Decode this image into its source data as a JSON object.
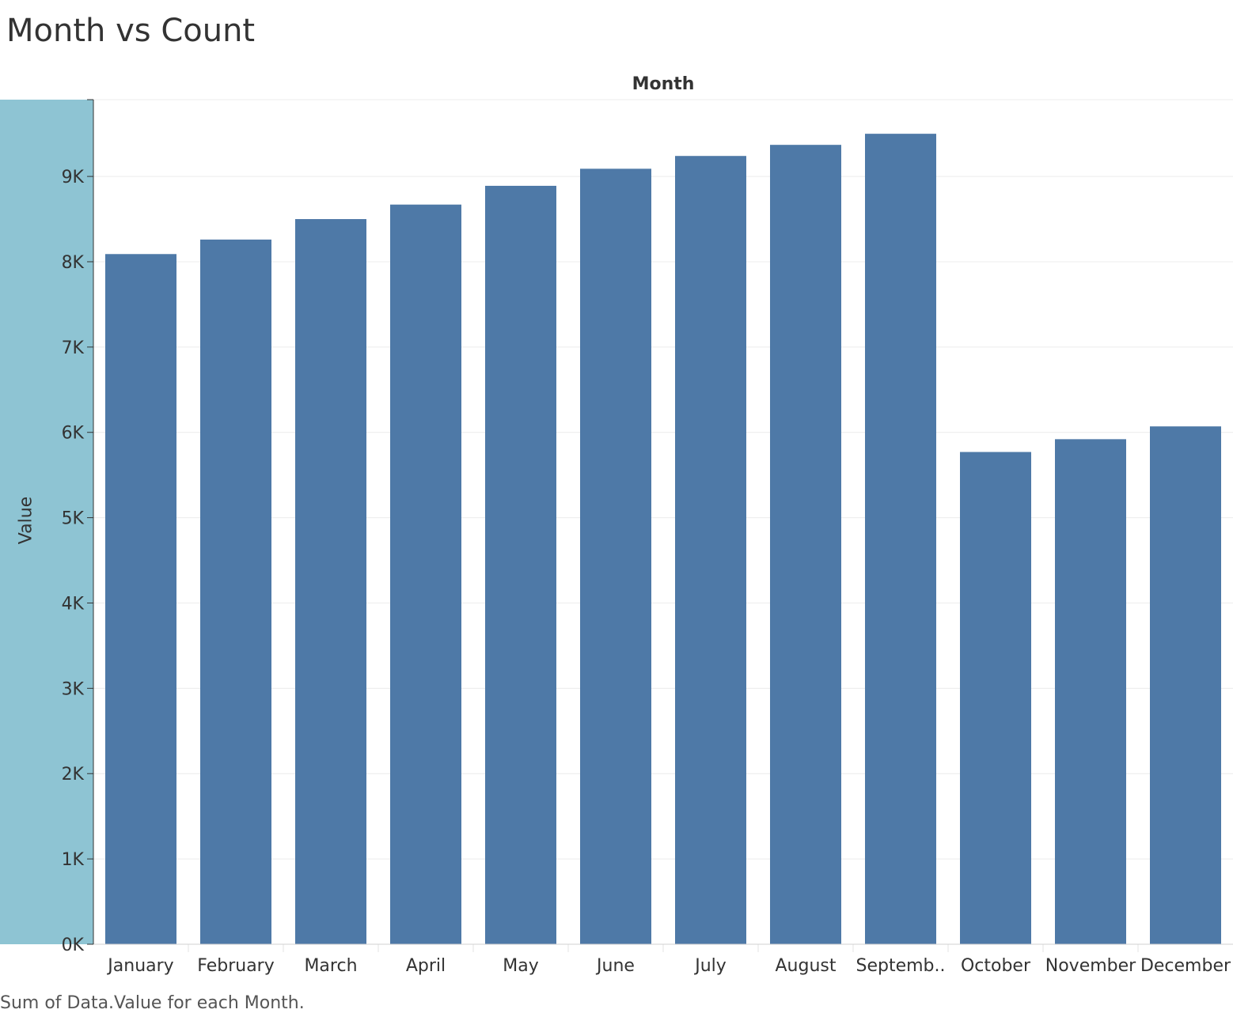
{
  "chart_data": {
    "type": "bar",
    "title": "Month vs Count",
    "column_header": "Month",
    "xlabel": "",
    "ylabel": "Value",
    "caption": "Sum of Data.Value for each Month.",
    "categories": [
      "January",
      "February",
      "March",
      "April",
      "May",
      "June",
      "July",
      "August",
      "Septemb..",
      "October",
      "November",
      "December"
    ],
    "values": [
      8090,
      8260,
      8500,
      8670,
      8890,
      9090,
      9240,
      9370,
      9500,
      5770,
      5920,
      6070
    ],
    "ylim": [
      0,
      9900
    ],
    "yticks": [
      0,
      1000,
      2000,
      3000,
      4000,
      5000,
      6000,
      7000,
      8000,
      9000
    ],
    "ytick_labels": [
      "0K",
      "1K",
      "2K",
      "3K",
      "4K",
      "5K",
      "6K",
      "7K",
      "8K",
      "9K"
    ],
    "grid": true,
    "bar_color": "#4e79a7",
    "axis_band_color": "#8ec4d3"
  }
}
